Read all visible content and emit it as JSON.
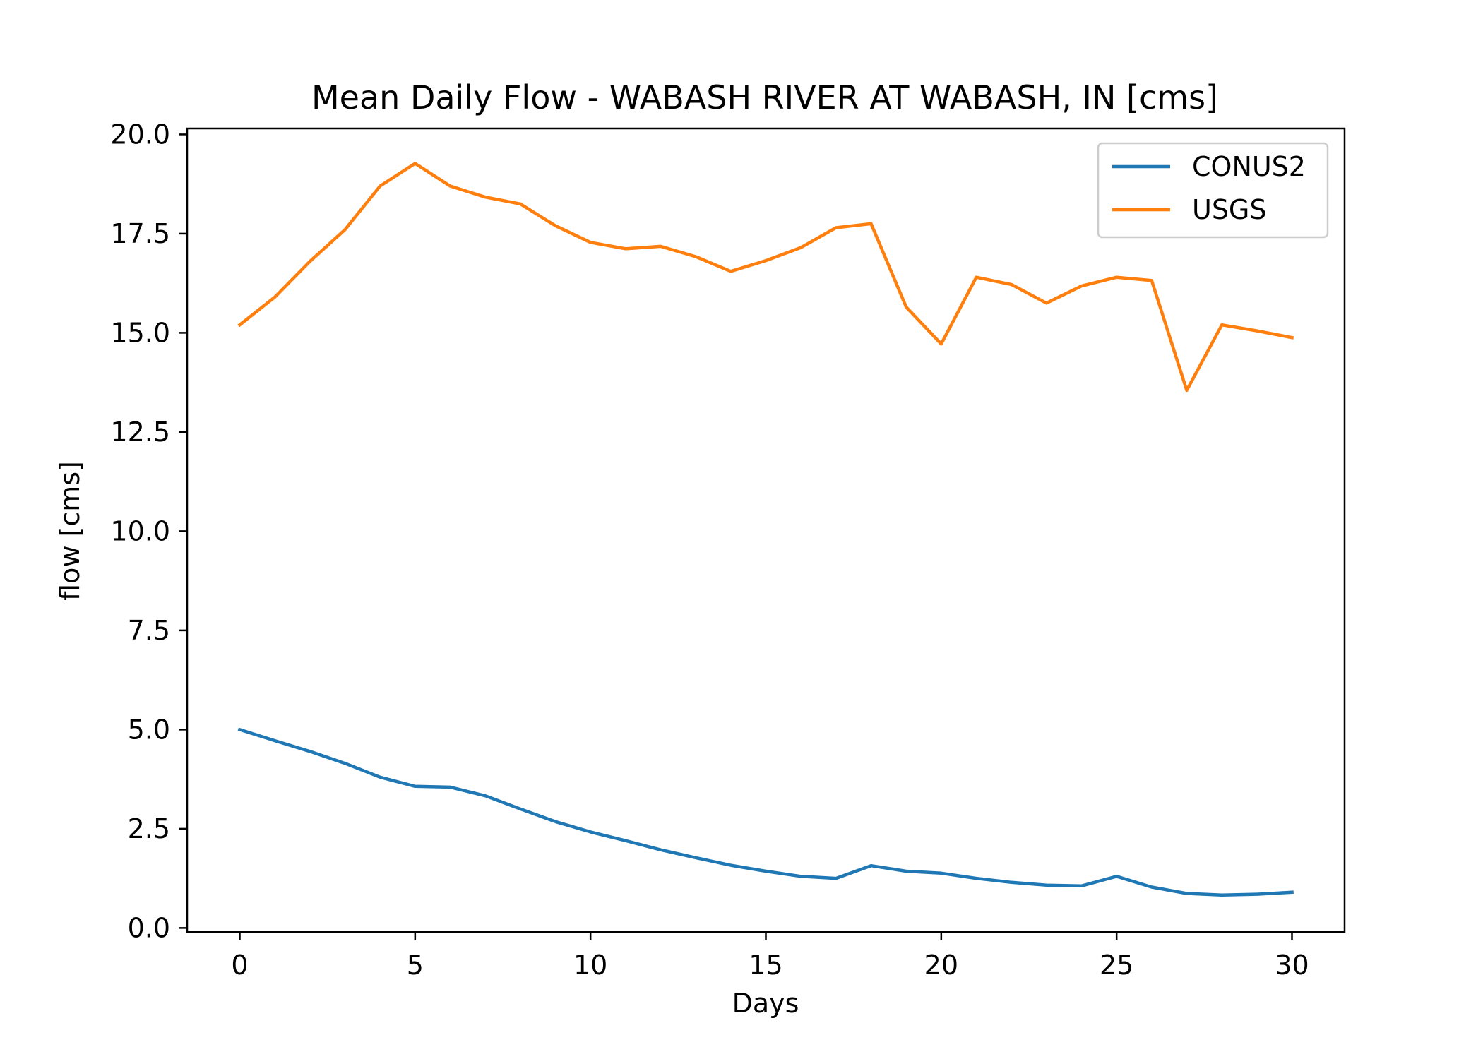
{
  "chart_data": {
    "type": "line",
    "title": "Mean Daily Flow - WABASH RIVER AT WABASH, IN [cms]",
    "xlabel": "Days",
    "ylabel": "flow [cms]",
    "xlim": [
      -1.5,
      31.5
    ],
    "ylim": [
      -0.1,
      20.15
    ],
    "xticks": [
      0,
      5,
      10,
      15,
      20,
      25,
      30
    ],
    "xtick_labels": [
      "0",
      "5",
      "10",
      "15",
      "20",
      "25",
      "30"
    ],
    "yticks": [
      0,
      2.5,
      5,
      7.5,
      10,
      12.5,
      15,
      17.5,
      20
    ],
    "ytick_labels": [
      "0.0",
      "2.5",
      "5.0",
      "7.5",
      "10.0",
      "12.5",
      "15.0",
      "17.5",
      "20.0"
    ],
    "grid": false,
    "legend_position": "top-right",
    "x": [
      0,
      1,
      2,
      3,
      4,
      5,
      6,
      7,
      8,
      9,
      10,
      11,
      12,
      13,
      14,
      15,
      16,
      17,
      18,
      19,
      20,
      21,
      22,
      23,
      24,
      25,
      26,
      27,
      28,
      29,
      30
    ],
    "series": [
      {
        "name": "CONUS2",
        "color": "#1f77b4",
        "values": [
          5.0,
          4.72,
          4.45,
          4.15,
          3.8,
          3.57,
          3.55,
          3.33,
          3.0,
          2.68,
          2.42,
          2.2,
          1.97,
          1.77,
          1.58,
          1.43,
          1.3,
          1.25,
          1.57,
          1.43,
          1.38,
          1.25,
          1.15,
          1.08,
          1.06,
          1.3,
          1.03,
          0.87,
          0.83,
          0.85,
          0.9
        ]
      },
      {
        "name": "USGS",
        "color": "#ff7f0e",
        "values": [
          15.2,
          15.9,
          16.8,
          17.6,
          18.7,
          19.27,
          18.7,
          18.42,
          18.25,
          17.7,
          17.28,
          17.12,
          17.18,
          16.92,
          16.55,
          16.82,
          17.15,
          17.65,
          17.75,
          15.65,
          14.72,
          16.4,
          16.22,
          15.75,
          16.18,
          16.4,
          16.32,
          13.55,
          15.2,
          15.05,
          14.88
        ]
      }
    ]
  }
}
